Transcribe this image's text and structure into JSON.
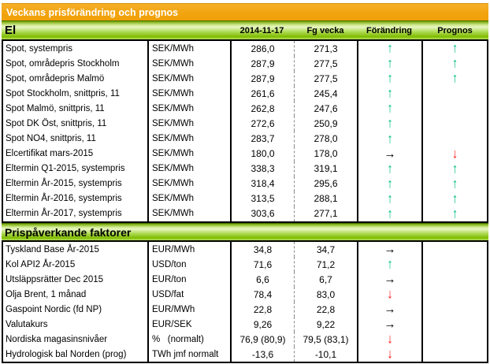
{
  "title": "Veckans prisförändring och prognos",
  "columns": {
    "date": "2014-11-17",
    "prev": "Fg vecka",
    "change": "Förändring",
    "forecast": "Prognos"
  },
  "arrows": {
    "up": {
      "glyph": "↑",
      "color": "#00bd86",
      "name": "up-arrow-icon"
    },
    "down": {
      "glyph": "↓",
      "color": "#ff1a1a",
      "name": "down-arrow-icon"
    },
    "right": {
      "glyph": "→",
      "color": "#000000",
      "name": "right-arrow-icon"
    },
    "none": {
      "glyph": "",
      "color": "#000000",
      "name": "no-icon"
    }
  },
  "colors": {
    "title_bar_orange": "#f2a410",
    "section_bar_green": "#8fc800",
    "arrow_up_green": "#00bd86",
    "arrow_down_red": "#ff1a1a",
    "arrow_right_black": "#000000"
  },
  "sections": [
    {
      "name": "El",
      "rows": [
        {
          "label": "Spot, systempris",
          "unit": "SEK/MWh",
          "current": "286,0",
          "previous": "271,3",
          "change": "up",
          "forecast": "up"
        },
        {
          "label": "Spot, områdepris Stockholm",
          "unit": "SEK/MWh",
          "current": "287,9",
          "previous": "277,5",
          "change": "up",
          "forecast": "up"
        },
        {
          "label": "Spot, områdepris Malmö",
          "unit": "SEK/MWh",
          "current": "287,9",
          "previous": "277,5",
          "change": "up",
          "forecast": "up"
        },
        {
          "label": "Spot Stockholm, snittpris,  11",
          "unit": "SEK/MWh",
          "current": "261,6",
          "previous": "245,4",
          "change": "up",
          "forecast": "none"
        },
        {
          "label": "Spot Malmö, snittpris,  11",
          "unit": "SEK/MWh",
          "current": "262,8",
          "previous": "247,6",
          "change": "up",
          "forecast": "none"
        },
        {
          "label": "Spot DK Öst, snittpris,  11",
          "unit": "SEK/MWh",
          "current": "272,6",
          "previous": "250,9",
          "change": "up",
          "forecast": "none"
        },
        {
          "label": "Spot NO4, snittpris,  11",
          "unit": "SEK/MWh",
          "current": "283,7",
          "previous": "278,0",
          "change": "up",
          "forecast": "none"
        },
        {
          "label": "Elcertifikat mars-2015",
          "unit": "SEK/MWh",
          "current": "180,0",
          "previous": "178,0",
          "change": "right",
          "forecast": "down"
        },
        {
          "label": "Eltermin Q1-2015, systempris",
          "unit": "SEK/MWh",
          "current": "338,3",
          "previous": "319,1",
          "change": "up",
          "forecast": "up"
        },
        {
          "label": "Eltermin År-2015, systempris",
          "unit": "SEK/MWh",
          "current": "318,4",
          "previous": "295,6",
          "change": "up",
          "forecast": "up"
        },
        {
          "label": "Eltermin År-2016, systempris",
          "unit": "SEK/MWh",
          "current": "313,5",
          "previous": "288,1",
          "change": "up",
          "forecast": "up"
        },
        {
          "label": "Eltermin År-2017, systempris",
          "unit": "SEK/MWh",
          "current": "303,6",
          "previous": "277,1",
          "change": "up",
          "forecast": "up"
        }
      ]
    },
    {
      "name": "Prispåverkande faktorer",
      "rows": [
        {
          "label": "Tyskland Base År-2015",
          "unit": "EUR/MWh",
          "current": "34,8",
          "previous": "34,7",
          "change": "right",
          "forecast": "none"
        },
        {
          "label": "Kol API2 År-2015",
          "unit": "USD/ton",
          "current": "71,6",
          "previous": "71,2",
          "change": "up",
          "forecast": "none"
        },
        {
          "label": "Utsläppsrätter Dec 2015",
          "unit": "EUR/ton",
          "current": "6,6",
          "previous": "6,7",
          "change": "right",
          "forecast": "none"
        },
        {
          "label": "Olja Brent, 1 månad",
          "unit": "USD/fat",
          "current": "78,4",
          "previous": "83,0",
          "change": "down",
          "forecast": "none"
        },
        {
          "label": "Gaspoint Nordic (fd NP)",
          "unit": "EUR/MWh",
          "current": "22,8",
          "previous": "22,8",
          "change": "right",
          "forecast": "none"
        },
        {
          "label": "Valutakurs",
          "unit": "EUR/SEK",
          "current": "9,26",
          "previous": "9,22",
          "change": "right",
          "forecast": "none"
        },
        {
          "label": "Nordiska magasinsnivåer",
          "unit": "%   (normalt)",
          "current": "76,9 (80,9)",
          "previous": "79,5 (83,1)",
          "change": "down",
          "forecast": "none"
        },
        {
          "label": "Hydrologisk bal Norden (prog)",
          "unit": "TWh jmf normalt",
          "current": "-13,6",
          "previous": "-10,1",
          "change": "down",
          "forecast": "none"
        }
      ]
    }
  ]
}
